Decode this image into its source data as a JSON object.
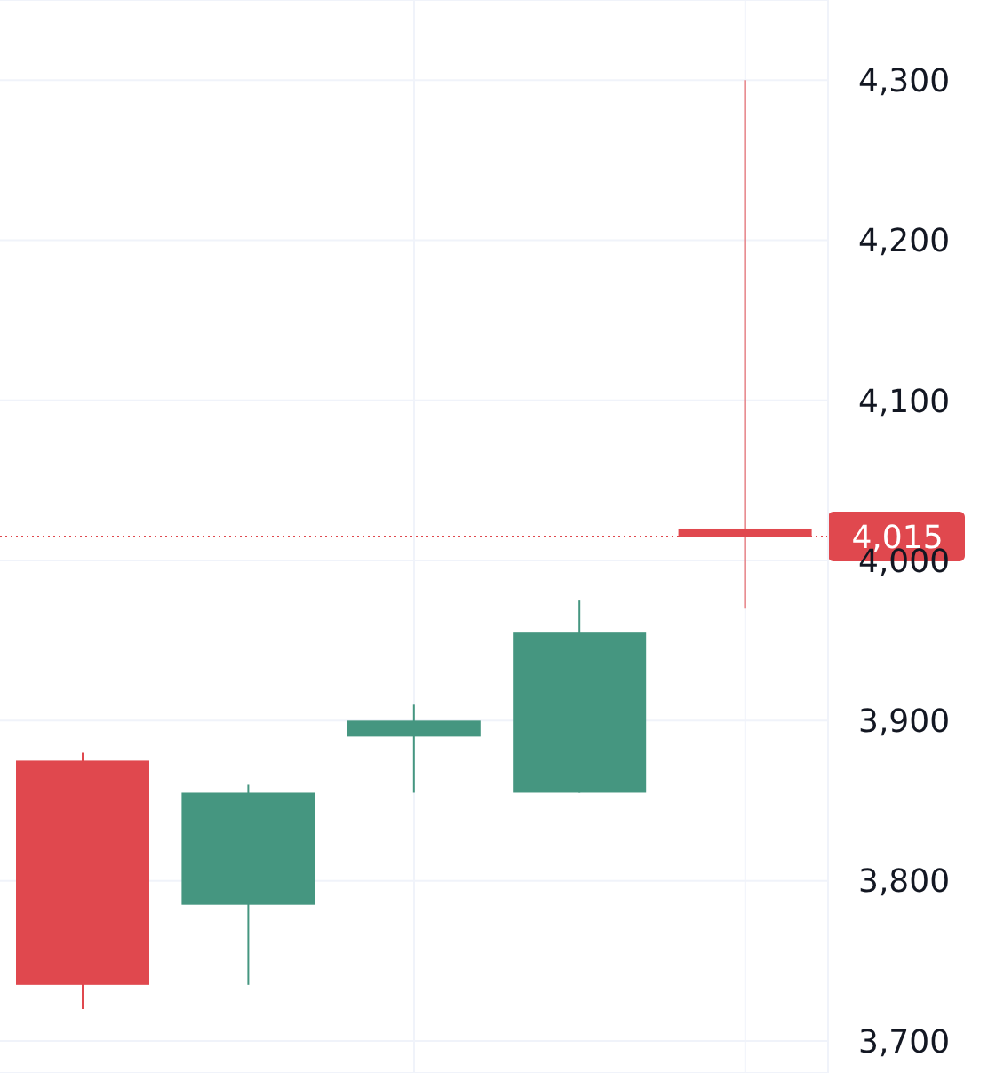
{
  "chart_data": {
    "type": "candlestick",
    "categories": [
      null,
      null,
      null,
      null,
      null
    ],
    "ohlc": [
      [
        3875,
        3880,
        3720,
        3735
      ],
      [
        3785,
        3860,
        3735,
        3855
      ],
      [
        3890,
        3910,
        3855,
        3900
      ],
      [
        3855,
        3975,
        3855,
        3955
      ],
      [
        4020,
        4300,
        3970,
        4015
      ]
    ],
    "colors": [
      "#e0484e",
      "#459680",
      "#459680",
      "#459680",
      "#e0484e"
    ],
    "ylim": [
      3680,
      4350
    ],
    "yticks": [
      {
        "value": 3700,
        "label": "3,700"
      },
      {
        "value": 3800,
        "label": "3,800"
      },
      {
        "value": 3900,
        "label": "3,900"
      },
      {
        "value": 4000,
        "label": "4,000"
      },
      {
        "value": 4100,
        "label": "4,100"
      },
      {
        "value": 4200,
        "label": "4,200"
      },
      {
        "value": 4300,
        "label": "4,300"
      }
    ],
    "tick_labels": "y",
    "grid": true,
    "ref_lines": [
      {
        "axis": "y",
        "value": 4015,
        "label": "4,015",
        "color": "#e0484e",
        "line_style": "dotted"
      }
    ]
  }
}
